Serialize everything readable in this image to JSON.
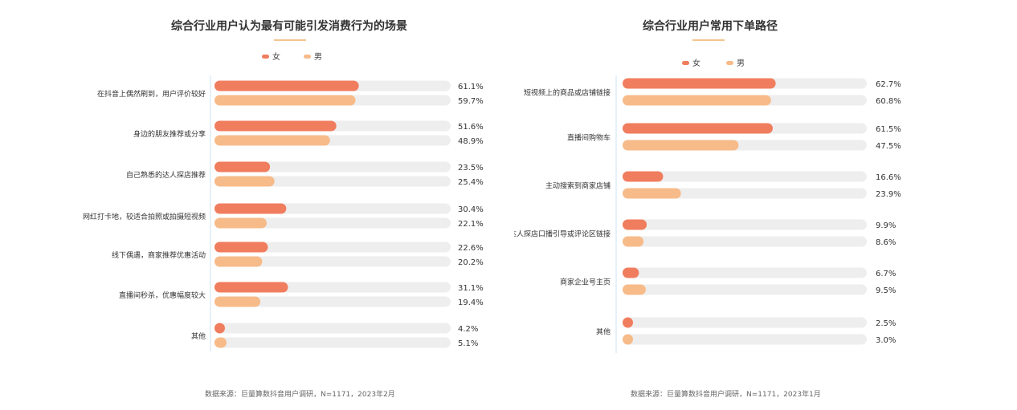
{
  "colors": {
    "female": "#f07d5e",
    "male": "#f7bb89",
    "track": "#eeeeee",
    "axis": "#cfe0f0"
  },
  "chart_data": [
    {
      "type": "bar",
      "orientation": "horizontal",
      "title": "综合行业用户认为最有可能引发消费行为的场景",
      "categories": [
        "在抖音上偶然刷到，用户评价较好",
        "身边的朋友推荐或分享",
        "自己熟悉的达人探店推荐",
        "网红打卡地，较适合拍照或拍摄短视频",
        "线下偶遇，商家推荐优惠活动",
        "直播间秒杀，优惠幅度较大",
        "其他"
      ],
      "series": [
        {
          "name": "女",
          "values": [
            61.1,
            51.6,
            23.5,
            30.4,
            22.6,
            31.1,
            4.2
          ],
          "labels": [
            "61.1%",
            "51.6%",
            "23.5%",
            "30.4%",
            "22.6%",
            "31.1%",
            "4.2%"
          ]
        },
        {
          "name": "男",
          "values": [
            59.7,
            48.9,
            25.4,
            22.1,
            20.2,
            19.4,
            5.1
          ],
          "labels": [
            "59.7%",
            "48.9%",
            "25.4%",
            "22.1%",
            "20.2%",
            "19.4%",
            "5.1%"
          ]
        }
      ],
      "xlim": [
        0,
        100
      ],
      "legend": "top-center",
      "source": "数据来源：巨量算数抖音用户调研，N=1171，2023年2月"
    },
    {
      "type": "bar",
      "orientation": "horizontal",
      "title": "综合行业用户常用下单路径",
      "categories": [
        "短视频上的商品或店铺链接",
        "直播间购物车",
        "主动搜索到商家店铺",
        "达人探店口播引导或评论区链接",
        "商家企业号主页",
        "其他"
      ],
      "series": [
        {
          "name": "女",
          "values": [
            62.7,
            61.5,
            16.6,
            9.9,
            6.7,
            2.5
          ],
          "labels": [
            "62.7%",
            "61.5%",
            "16.6%",
            "9.9%",
            "6.7%",
            "2.5%"
          ]
        },
        {
          "name": "男",
          "values": [
            60.8,
            47.5,
            23.9,
            8.6,
            9.5,
            3.0
          ],
          "labels": [
            "60.8%",
            "47.5%",
            "23.9%",
            "8.6%",
            "9.5%",
            "3.0%"
          ]
        }
      ],
      "xlim": [
        0,
        100
      ],
      "legend": "top-center",
      "source": "数据来源：巨量算数抖音用户调研，N=1171，2023年1月"
    }
  ]
}
